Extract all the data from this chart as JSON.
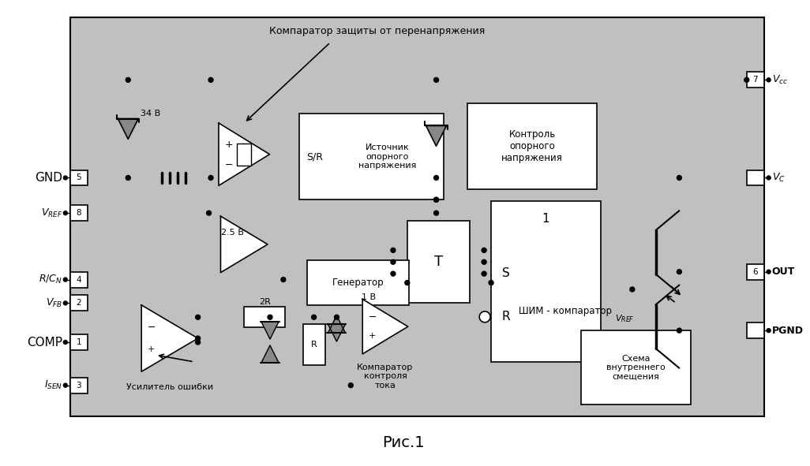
{
  "bg_color": "#c0c0c0",
  "outer_bg": "#ffffff",
  "box_color": "#ffffff",
  "border_color": "#000000",
  "title": "Рис.1",
  "title_fontsize": 14,
  "annotation_label": "Компаратор защиты от перенапряжения",
  "label_34v": "34 В",
  "label_25v": "2.5 В",
  "label_1v": "1 В",
  "label_2R": "2R",
  "label_R": "R",
  "shim_label": "ШИМ - компаратор",
  "vref_sub_label": "V",
  "sr_block_label": "Источник\nопорного\nнапряжения",
  "kontrol_label": "Контроль\nопорного\nнапряжения",
  "gen_label": "Генератор",
  "bias_label": "Схема\nвнутреннего\nсмещения",
  "ea_label": "Усилитель ошибки",
  "cc_label": "Компаратор\nконтроля\nтока"
}
